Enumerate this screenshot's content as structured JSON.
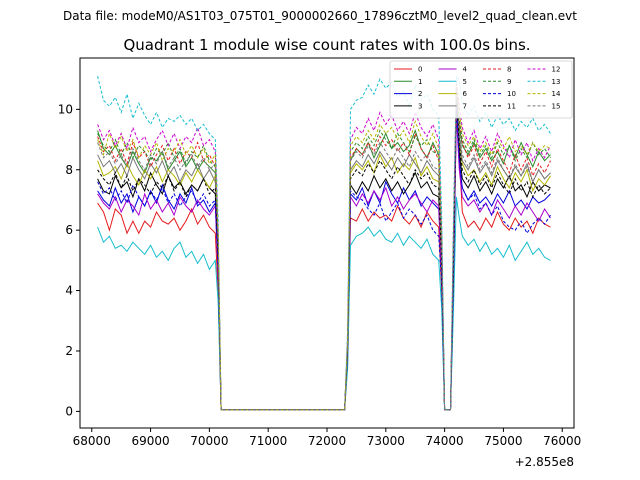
{
  "header": {
    "suptitle": "Data file: modeM0/AS1T03_075T01_9000002660_17896cztM0_level2_quad_clean.evt"
  },
  "chart_data": {
    "type": "line",
    "title": "Quadrant 1 module wise count rates with 100.0s bins.",
    "xlabel": "",
    "ylabel": "",
    "x_offset_label": "+2.855e8",
    "xlim": [
      67800,
      76200
    ],
    "ylim": [
      -0.55,
      11.7
    ],
    "xticks": [
      68000,
      69000,
      70000,
      71000,
      72000,
      73000,
      74000,
      75000,
      76000
    ],
    "xtick_labels": [
      "68000",
      "69000",
      "70000",
      "71000",
      "72000",
      "73000",
      "74000",
      "75000",
      "76000"
    ],
    "yticks": [
      0,
      2,
      4,
      6,
      8,
      10
    ],
    "ytick_labels": [
      "0",
      "2",
      "4",
      "6",
      "8",
      "10"
    ],
    "grid": false,
    "legend_position": "top-right",
    "x": [
      68100,
      68200,
      68300,
      68400,
      68500,
      68600,
      68700,
      68800,
      68900,
      69000,
      69100,
      69200,
      69300,
      69400,
      69500,
      69600,
      69700,
      69800,
      69900,
      70000,
      70100,
      70150,
      70200,
      72300,
      72350,
      72400,
      72500,
      72600,
      72700,
      72800,
      72900,
      73000,
      73100,
      73200,
      73300,
      73400,
      73500,
      73600,
      73700,
      73800,
      73900,
      73950,
      74000,
      74100,
      74150,
      74200,
      74250,
      74300,
      74400,
      74500,
      74600,
      74700,
      74800,
      74900,
      75000,
      75100,
      75200,
      75300,
      75400,
      75500,
      75600,
      75700,
      75800
    ],
    "series": [
      {
        "name": "0",
        "color": "#e41a1c",
        "dashed": false,
        "values": [
          6.9,
          6.6,
          6.0,
          6.7,
          6.5,
          5.9,
          6.3,
          5.9,
          6.3,
          6.1,
          6.6,
          6.3,
          6.2,
          6.4,
          6.0,
          6.3,
          6.7,
          6.2,
          6.5,
          6.1,
          5.9,
          3.9,
          0.05,
          0.05,
          1.6,
          6.4,
          6.3,
          6.7,
          6.3,
          6.6,
          6.4,
          6.5,
          6.3,
          6.8,
          6.4,
          6.2,
          6.5,
          6.1,
          6.6,
          6.3,
          6.1,
          4.0,
          0.05,
          0.05,
          4.0,
          9.9,
          8.5,
          6.6,
          6.1,
          6.3,
          6.0,
          6.4,
          6.1,
          6.6,
          6.2,
          6.0,
          6.4,
          6.1,
          6.3,
          5.9,
          6.4,
          6.2,
          6.1
        ]
      },
      {
        "name": "1",
        "color": "#2a8a2a",
        "dashed": false,
        "values": [
          9.3,
          8.7,
          8.5,
          8.8,
          8.4,
          8.1,
          8.6,
          8.2,
          7.9,
          8.4,
          8.3,
          8.6,
          8.0,
          8.3,
          8.6,
          8.1,
          8.4,
          8.0,
          8.3,
          8.1,
          7.9,
          5.5,
          0.05,
          0.05,
          2.2,
          8.3,
          8.7,
          8.5,
          8.9,
          8.4,
          8.8,
          9.2,
          8.7,
          8.9,
          8.6,
          8.8,
          9.3,
          8.7,
          8.4,
          8.9,
          8.5,
          5.7,
          0.05,
          0.05,
          5.3,
          10.3,
          9.4,
          8.8,
          8.5,
          8.9,
          8.4,
          8.7,
          8.3,
          8.6,
          8.2,
          8.8,
          8.4,
          8.9,
          8.5,
          8.1,
          8.6,
          8.3,
          8.5
        ]
      },
      {
        "name": "2",
        "color": "#0000dd",
        "dashed": false,
        "values": [
          7.3,
          7.0,
          6.8,
          7.4,
          6.9,
          7.2,
          6.6,
          7.1,
          6.8,
          7.3,
          6.9,
          7.5,
          7.0,
          6.7,
          7.2,
          6.9,
          7.4,
          6.8,
          7.0,
          6.6,
          6.9,
          4.6,
          0.05,
          0.05,
          1.8,
          7.2,
          7.0,
          7.4,
          6.8,
          7.3,
          6.9,
          7.6,
          7.2,
          6.9,
          7.4,
          7.0,
          7.3,
          6.8,
          7.1,
          6.9,
          6.7,
          4.6,
          0.05,
          0.05,
          4.4,
          10.0,
          8.2,
          7.4,
          7.0,
          7.3,
          6.9,
          7.1,
          6.8,
          7.2,
          6.9,
          7.3,
          6.8,
          7.0,
          6.7,
          7.1,
          6.9,
          7.0,
          7.2
        ]
      },
      {
        "name": "3",
        "color": "#000000",
        "dashed": false,
        "values": [
          7.7,
          7.3,
          7.2,
          7.8,
          7.4,
          7.6,
          7.1,
          7.7,
          7.3,
          7.9,
          7.5,
          7.2,
          7.8,
          7.4,
          7.6,
          7.2,
          7.5,
          7.3,
          7.7,
          7.4,
          7.2,
          4.9,
          0.05,
          0.05,
          1.9,
          7.5,
          7.2,
          7.6,
          7.3,
          7.8,
          7.4,
          7.7,
          7.3,
          7.6,
          7.2,
          7.5,
          7.9,
          7.4,
          7.6,
          7.2,
          7.1,
          4.8,
          0.05,
          0.05,
          4.7,
          10.6,
          8.6,
          7.7,
          7.4,
          7.8,
          7.3,
          7.6,
          7.2,
          7.7,
          7.4,
          7.8,
          7.3,
          7.5,
          7.1,
          7.6,
          7.3,
          7.5,
          7.4
        ]
      },
      {
        "name": "4",
        "color": "#aa00cc",
        "dashed": false,
        "values": [
          7.2,
          6.9,
          6.7,
          7.1,
          6.6,
          7.0,
          6.8,
          6.5,
          7.2,
          6.7,
          7.0,
          6.6,
          6.9,
          6.5,
          7.1,
          6.8,
          6.6,
          7.0,
          6.7,
          6.5,
          6.8,
          4.5,
          0.05,
          0.05,
          1.8,
          7.1,
          6.8,
          7.2,
          6.9,
          7.3,
          7.0,
          7.4,
          6.8,
          7.1,
          6.7,
          7.0,
          7.2,
          6.9,
          6.6,
          7.0,
          6.8,
          4.5,
          0.05,
          0.05,
          4.3,
          9.8,
          8.0,
          7.1,
          6.8,
          7.0,
          6.6,
          6.9,
          6.5,
          7.0,
          6.7,
          6.4,
          6.8,
          6.5,
          6.9,
          6.6,
          6.3,
          6.7,
          6.4
        ]
      },
      {
        "name": "5",
        "color": "#17becf",
        "dashed": false,
        "values": [
          6.1,
          5.6,
          5.8,
          5.4,
          5.5,
          5.3,
          5.6,
          5.4,
          5.2,
          5.5,
          5.1,
          5.3,
          5.0,
          5.4,
          5.6,
          5.1,
          5.3,
          4.9,
          5.2,
          4.7,
          5.0,
          3.6,
          0.05,
          0.05,
          1.4,
          5.5,
          5.8,
          5.9,
          6.1,
          5.8,
          6.0,
          5.7,
          5.6,
          5.9,
          5.5,
          5.8,
          5.6,
          5.4,
          5.7,
          5.2,
          5.0,
          3.4,
          0.05,
          0.05,
          3.3,
          7.1,
          6.4,
          5.8,
          5.5,
          5.7,
          5.3,
          5.6,
          5.2,
          5.4,
          5.1,
          5.5,
          5.0,
          5.3,
          5.6,
          5.2,
          5.4,
          5.1,
          5.0
        ]
      },
      {
        "name": "6",
        "color": "#b5b500",
        "dashed": false,
        "values": [
          8.3,
          7.8,
          7.9,
          8.1,
          7.7,
          8.2,
          7.8,
          7.5,
          8.0,
          7.7,
          8.1,
          7.6,
          8.0,
          7.8,
          7.5,
          7.9,
          7.6,
          8.0,
          7.7,
          7.4,
          7.8,
          5.2,
          0.05,
          0.05,
          2.0,
          7.9,
          8.2,
          8.0,
          8.3,
          7.9,
          8.5,
          8.1,
          8.4,
          7.9,
          8.2,
          8.0,
          8.4,
          7.8,
          8.1,
          7.7,
          7.6,
          5.0,
          0.05,
          0.05,
          5.0,
          10.8,
          8.9,
          8.2,
          7.8,
          8.0,
          7.6,
          7.9,
          7.5,
          8.1,
          7.7,
          7.4,
          7.9,
          7.6,
          8.0,
          7.3,
          7.7,
          7.5,
          7.8
        ]
      },
      {
        "name": "7",
        "color": "#777777",
        "dashed": false,
        "values": [
          8.5,
          8.1,
          8.3,
          7.9,
          8.2,
          7.8,
          8.4,
          8.0,
          7.7,
          8.2,
          7.9,
          8.3,
          7.8,
          8.1,
          7.6,
          8.0,
          7.8,
          8.2,
          7.7,
          8.0,
          7.6,
          5.3,
          0.05,
          0.05,
          2.1,
          8.0,
          8.3,
          8.1,
          8.5,
          8.2,
          8.6,
          8.3,
          8.0,
          8.4,
          8.1,
          8.5,
          8.2,
          7.9,
          8.3,
          8.0,
          7.8,
          5.2,
          0.05,
          0.05,
          5.1,
          10.5,
          9.1,
          8.3,
          8.0,
          8.4,
          7.9,
          8.2,
          7.8,
          8.3,
          8.0,
          7.7,
          8.1,
          7.8,
          8.2,
          7.6,
          8.0,
          7.7,
          7.9
        ]
      },
      {
        "name": "8",
        "color": "#e41a1c",
        "dashed": true,
        "values": [
          9.1,
          8.6,
          8.8,
          8.3,
          8.7,
          8.2,
          8.9,
          8.4,
          8.6,
          8.1,
          8.5,
          8.8,
          8.3,
          8.7,
          8.2,
          8.6,
          8.4,
          8.9,
          8.3,
          8.5,
          8.1,
          5.6,
          0.05,
          0.05,
          2.2,
          8.4,
          8.7,
          8.5,
          8.9,
          8.6,
          9.1,
          8.8,
          9.0,
          8.6,
          8.9,
          8.5,
          9.2,
          8.7,
          8.4,
          8.8,
          8.3,
          5.5,
          0.05,
          0.05,
          5.4,
          10.6,
          9.6,
          8.9,
          8.4,
          8.8,
          8.2,
          8.6,
          8.1,
          8.7,
          8.3,
          7.9,
          8.5,
          8.0,
          8.4,
          7.8,
          8.2,
          7.9,
          8.3
        ]
      },
      {
        "name": "9",
        "color": "#2a8a2a",
        "dashed": true,
        "values": [
          9.2,
          8.8,
          8.6,
          9.0,
          8.5,
          8.9,
          8.4,
          8.8,
          8.6,
          8.3,
          8.7,
          8.5,
          8.9,
          8.4,
          8.7,
          8.2,
          8.6,
          8.4,
          8.8,
          8.3,
          8.1,
          5.7,
          0.05,
          0.05,
          2.3,
          8.6,
          8.9,
          8.7,
          9.1,
          8.8,
          9.3,
          9.0,
          8.7,
          9.2,
          8.9,
          8.6,
          9.1,
          8.8,
          9.0,
          8.6,
          8.5,
          5.6,
          0.05,
          0.05,
          5.5,
          10.4,
          9.7,
          9.0,
          8.6,
          9.0,
          8.5,
          8.8,
          8.4,
          8.9,
          8.5,
          8.8,
          8.3,
          8.7,
          8.4,
          8.9,
          8.5,
          8.7,
          8.4
        ]
      },
      {
        "name": "10",
        "color": "#0000dd",
        "dashed": true,
        "values": [
          7.6,
          7.2,
          7.4,
          7.0,
          7.3,
          6.9,
          7.5,
          7.1,
          6.8,
          7.3,
          7.0,
          7.4,
          6.9,
          7.2,
          6.8,
          7.1,
          7.3,
          6.9,
          7.2,
          6.8,
          7.0,
          4.7,
          0.05,
          0.05,
          1.9,
          7.3,
          7.1,
          7.0,
          6.7,
          6.5,
          6.9,
          6.3,
          6.6,
          6.9,
          6.4,
          6.7,
          6.5,
          6.2,
          6.5,
          6.0,
          5.8,
          4.2,
          0.05,
          0.05,
          4.2,
          10.2,
          8.3,
          7.4,
          7.0,
          7.2,
          6.7,
          6.9,
          6.5,
          6.8,
          6.3,
          6.1,
          6.0,
          6.3,
          5.9,
          6.2,
          6.4,
          6.2,
          6.5
        ]
      },
      {
        "name": "11",
        "color": "#000000",
        "dashed": true,
        "values": [
          8.0,
          7.7,
          7.5,
          7.9,
          7.4,
          7.8,
          7.3,
          7.7,
          7.5,
          7.2,
          7.6,
          7.4,
          7.8,
          7.3,
          7.6,
          7.1,
          7.5,
          7.3,
          7.7,
          7.2,
          7.4,
          5.0,
          0.05,
          0.05,
          2.0,
          7.7,
          8.0,
          7.8,
          8.2,
          7.9,
          8.3,
          8.0,
          7.7,
          8.1,
          7.8,
          7.5,
          8.0,
          7.7,
          7.9,
          7.5,
          7.4,
          4.9,
          0.05,
          0.05,
          4.8,
          10.7,
          8.8,
          8.0,
          7.6,
          8.0,
          7.5,
          7.8,
          7.4,
          7.9,
          7.5,
          7.2,
          7.7,
          7.3,
          7.6,
          7.1,
          7.5,
          7.2,
          7.4
        ]
      },
      {
        "name": "12",
        "color": "#cc00cc",
        "dashed": true,
        "values": [
          9.5,
          9.0,
          9.3,
          8.8,
          9.2,
          8.7,
          9.4,
          8.9,
          9.1,
          8.6,
          9.0,
          9.3,
          8.8,
          9.2,
          8.7,
          9.1,
          8.9,
          9.4,
          8.8,
          9.0,
          8.6,
          5.9,
          0.05,
          0.05,
          2.4,
          9.0,
          9.4,
          9.2,
          9.7,
          9.3,
          9.9,
          9.5,
          9.8,
          9.3,
          9.6,
          9.2,
          9.9,
          9.4,
          9.1,
          9.5,
          9.0,
          5.9,
          0.05,
          0.05,
          5.8,
          10.9,
          10.1,
          9.4,
          8.9,
          9.3,
          8.7,
          9.1,
          8.6,
          9.2,
          8.8,
          8.4,
          9.0,
          8.5,
          8.9,
          8.3,
          8.7,
          8.4,
          8.8
        ]
      },
      {
        "name": "13",
        "color": "#17becf",
        "dashed": true,
        "values": [
          11.1,
          10.3,
          10.1,
          10.4,
          9.9,
          10.5,
          9.7,
          10.2,
          9.8,
          9.5,
          9.9,
          9.4,
          9.7,
          9.6,
          9.8,
          9.5,
          9.7,
          9.3,
          9.5,
          9.2,
          9.0,
          6.3,
          0.05,
          0.05,
          2.7,
          10.0,
          10.3,
          10.4,
          10.8,
          10.5,
          11.0,
          10.7,
          10.9,
          10.4,
          10.6,
          10.1,
          10.8,
          10.3,
          10.5,
          10.0,
          9.8,
          6.5,
          0.05,
          0.05,
          6.4,
          11.1,
          10.9,
          10.2,
          9.8,
          10.1,
          9.6,
          9.9,
          9.4,
          9.8,
          9.5,
          9.7,
          9.3,
          9.6,
          9.4,
          9.7,
          9.3,
          9.5,
          9.2
        ]
      },
      {
        "name": "14",
        "color": "#b5b500",
        "dashed": true,
        "values": [
          9.0,
          8.5,
          9.2,
          8.7,
          9.1,
          8.6,
          9.0,
          8.4,
          8.8,
          8.5,
          8.9,
          8.3,
          8.7,
          8.6,
          9.0,
          8.5,
          8.8,
          8.4,
          8.7,
          8.2,
          8.5,
          5.8,
          0.05,
          0.05,
          2.3,
          8.8,
          9.1,
          8.9,
          9.3,
          9.0,
          9.5,
          9.2,
          9.4,
          9.0,
          9.3,
          8.9,
          9.6,
          9.1,
          8.8,
          9.2,
          8.7,
          5.7,
          0.05,
          0.05,
          5.6,
          10.8,
          9.9,
          9.2,
          8.8,
          9.1,
          8.6,
          8.9,
          8.5,
          9.0,
          8.7,
          9.1,
          8.6,
          8.8,
          8.5,
          8.9,
          8.6,
          8.8,
          8.7
        ]
      },
      {
        "name": "15",
        "color": "#777777",
        "dashed": true,
        "values": [
          8.9,
          8.4,
          8.6,
          8.2,
          8.5,
          8.1,
          8.7,
          8.3,
          8.0,
          8.5,
          8.2,
          8.6,
          8.1,
          8.4,
          8.0,
          8.3,
          8.5,
          8.1,
          8.4,
          8.0,
          8.2,
          5.5,
          0.05,
          0.05,
          2.2,
          8.3,
          8.6,
          8.4,
          8.8,
          8.5,
          8.9,
          8.6,
          8.3,
          8.7,
          8.4,
          8.1,
          8.6,
          8.3,
          8.5,
          8.1,
          8.0,
          5.3,
          0.05,
          0.05,
          5.2,
          10.7,
          9.2,
          8.5,
          8.1,
          8.5,
          8.0,
          8.3,
          7.9,
          8.4,
          8.0,
          7.7,
          8.2,
          7.8,
          8.1,
          7.6,
          8.0,
          7.7,
          7.9
        ]
      }
    ]
  }
}
